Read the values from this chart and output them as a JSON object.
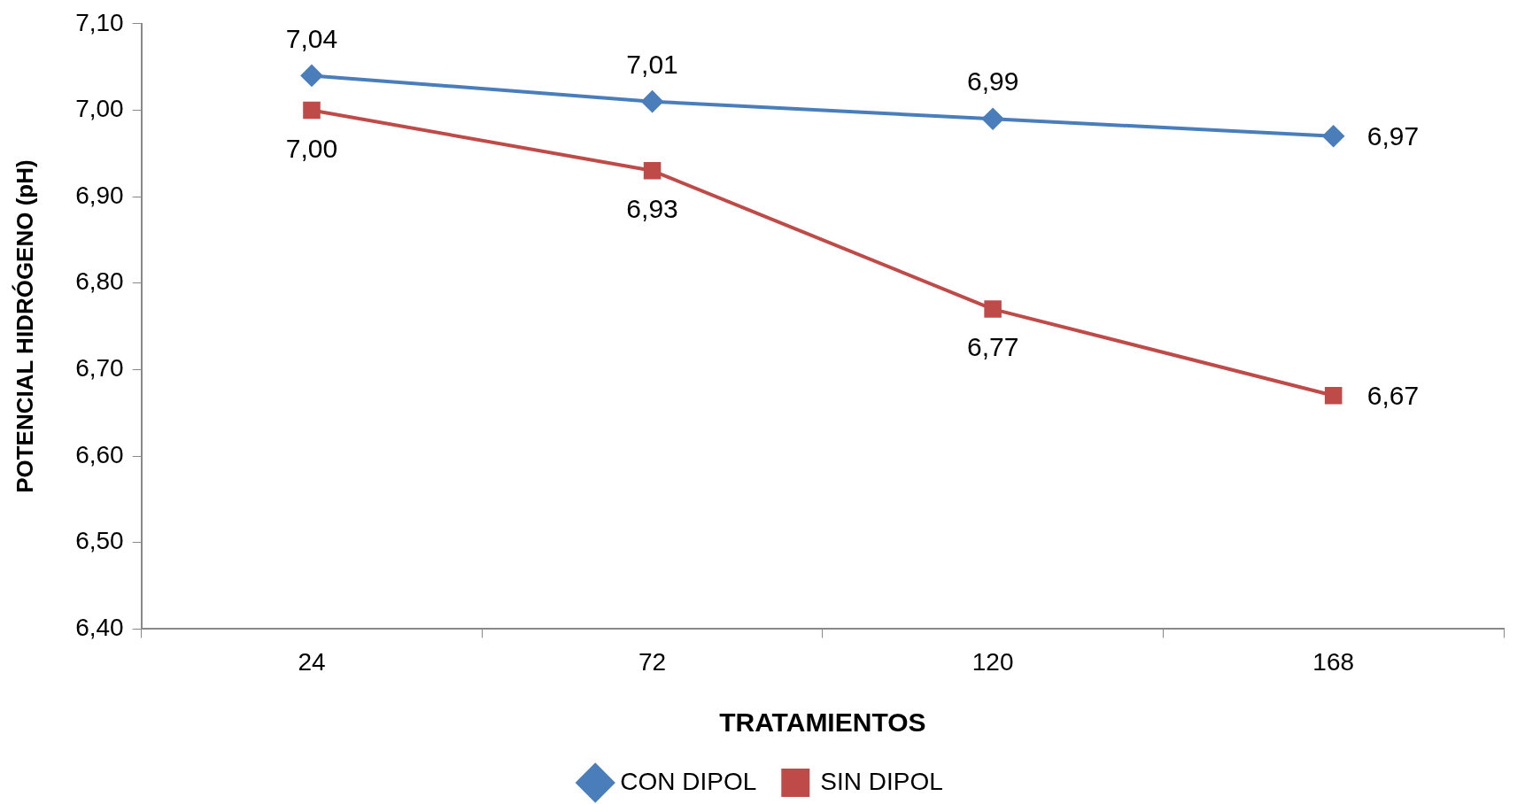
{
  "chart_data": {
    "type": "line",
    "xlabel": "TRATAMIENTOS",
    "ylabel": "POTENCIAL HIDRÓGENO (pH)",
    "categories": [
      "24",
      "72",
      "120",
      "168"
    ],
    "series": [
      {
        "name": "CON DIPOL",
        "color": "#4a7ebb",
        "marker": "diamond",
        "values": [
          7.04,
          7.01,
          6.99,
          6.97
        ],
        "value_labels": [
          "7,04",
          "7,01",
          "6,99",
          "6,97"
        ]
      },
      {
        "name": "SIN DIPOL",
        "color": "#be4b48",
        "marker": "square",
        "values": [
          7.0,
          6.93,
          6.77,
          6.67
        ],
        "value_labels": [
          "7,00",
          "6,93",
          "6,77",
          "6,67"
        ]
      }
    ],
    "ylim": [
      6.4,
      7.1
    ],
    "yticks": [
      {
        "value": 6.4,
        "label": "6,40"
      },
      {
        "value": 6.5,
        "label": "6,50"
      },
      {
        "value": 6.6,
        "label": "6,60"
      },
      {
        "value": 6.7,
        "label": "6,70"
      },
      {
        "value": 6.8,
        "label": "6,80"
      },
      {
        "value": 6.9,
        "label": "6,90"
      },
      {
        "value": 7.0,
        "label": "7,00"
      },
      {
        "value": 7.1,
        "label": "7,10"
      }
    ],
    "grid": false,
    "legend": "bottom",
    "line_style": "solid"
  }
}
